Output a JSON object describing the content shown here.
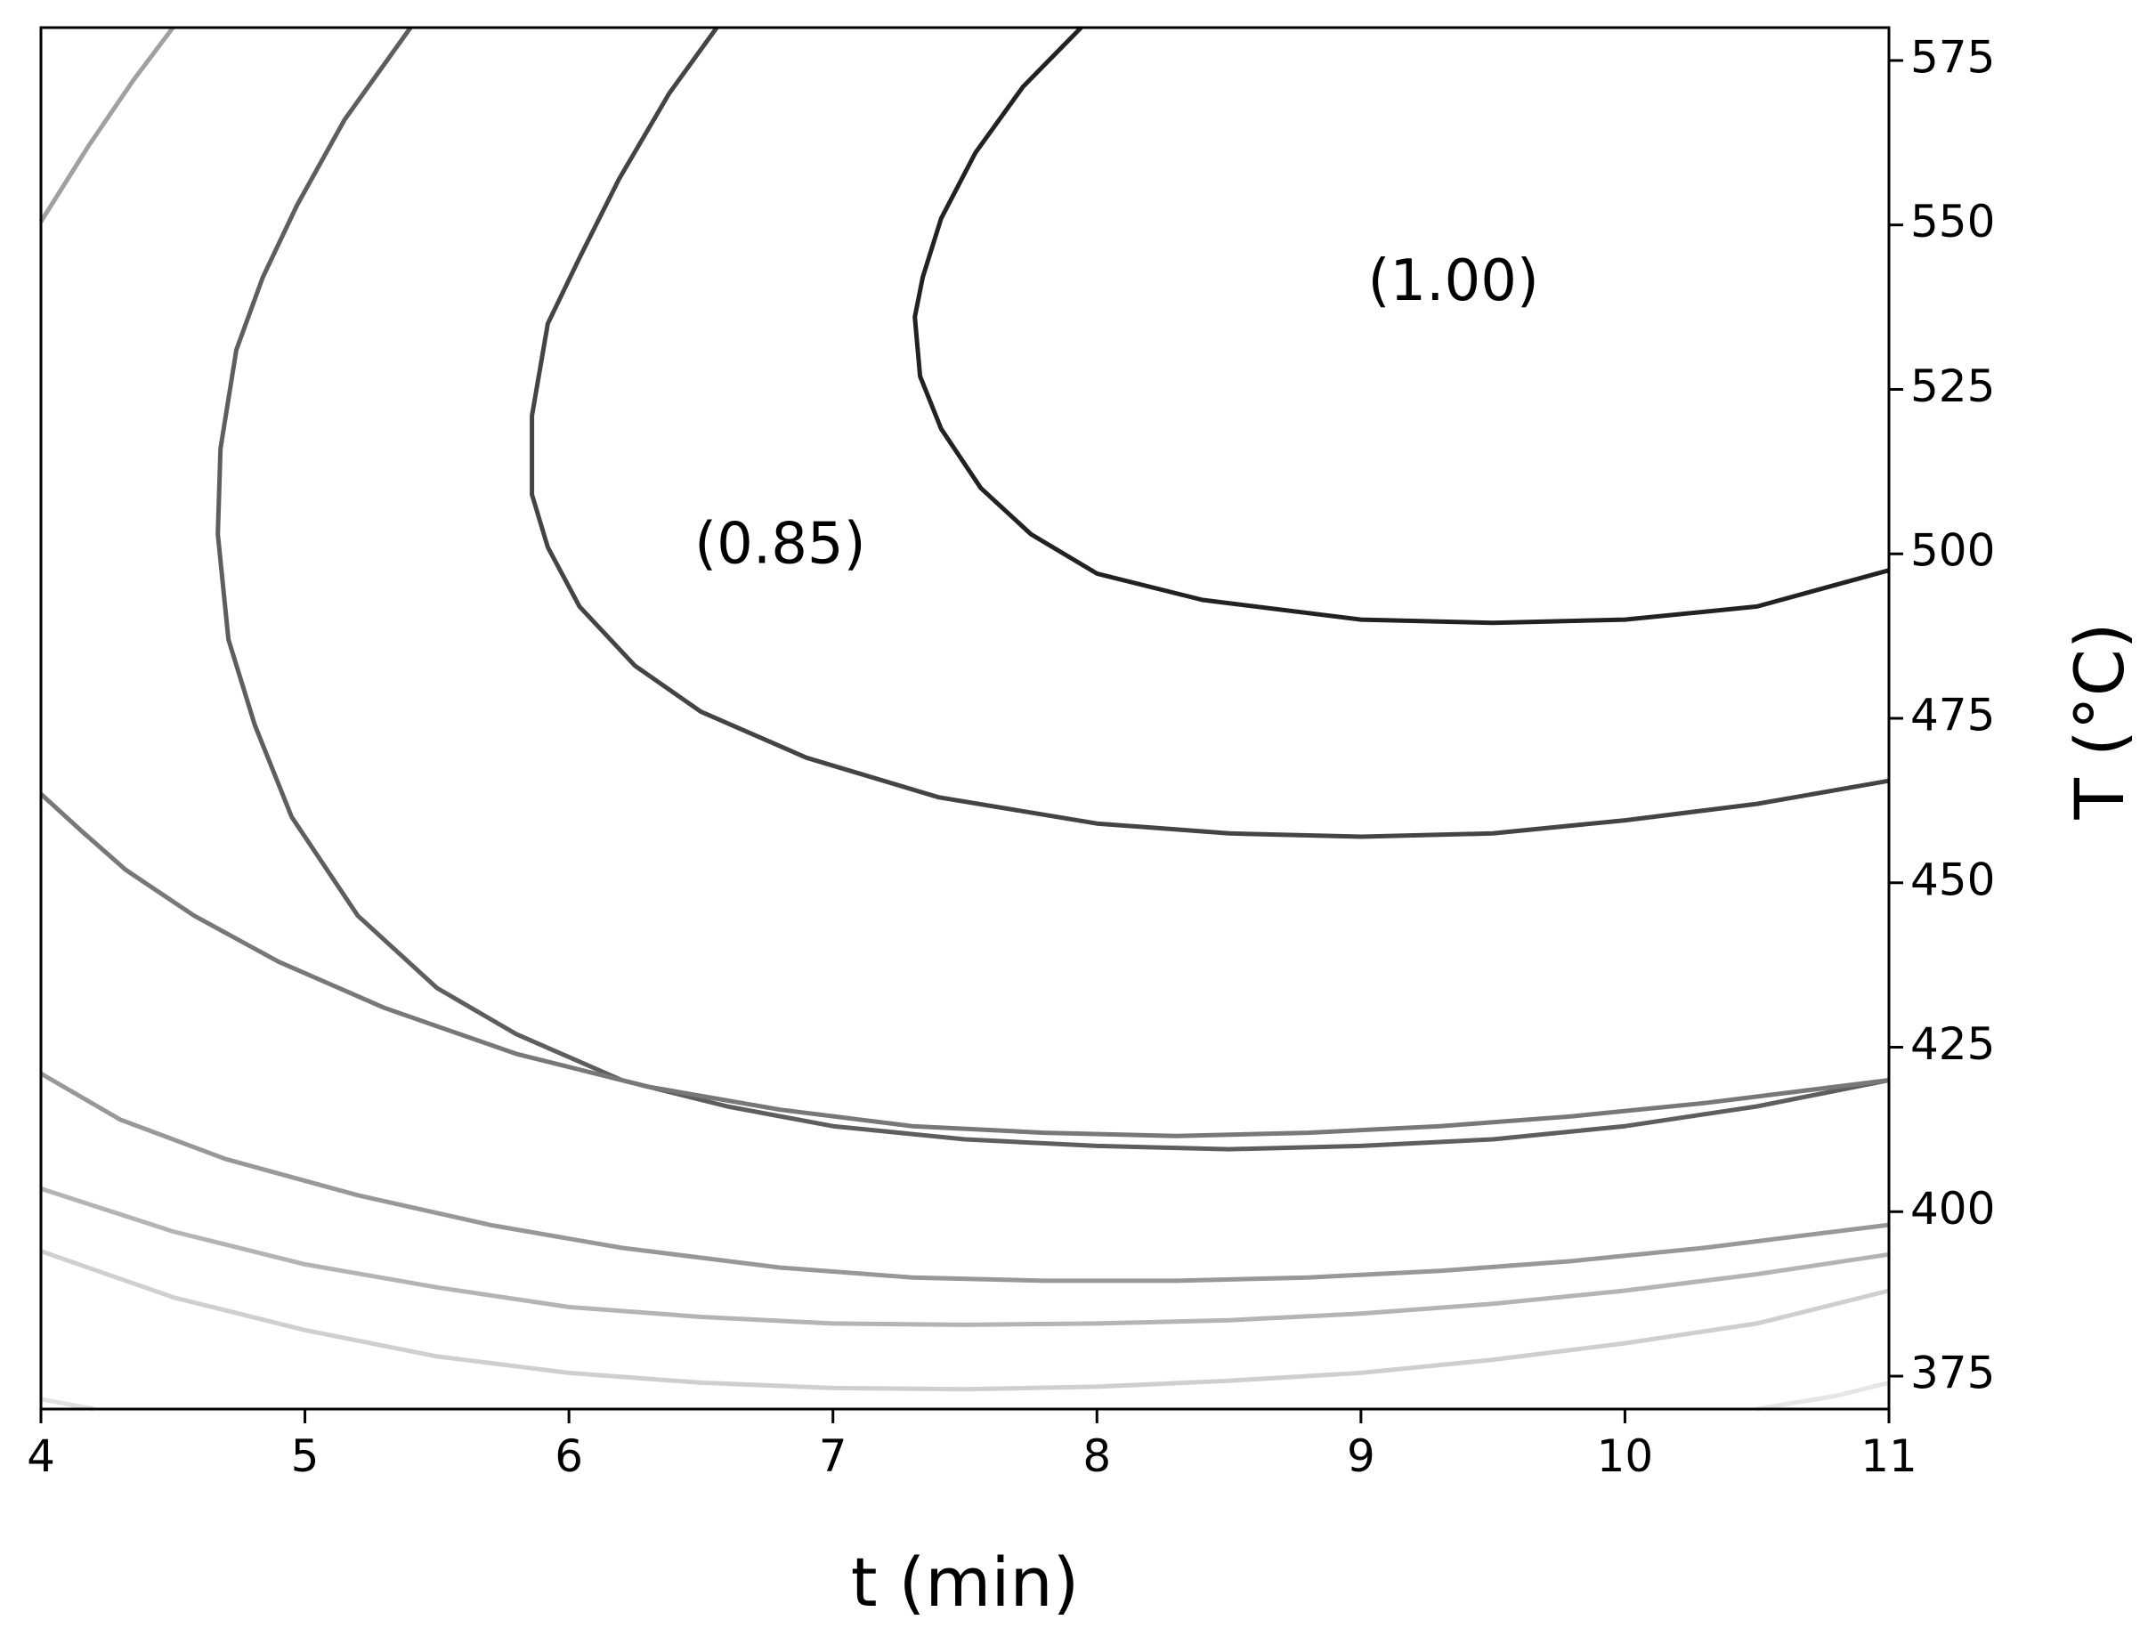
{
  "chart_data": {
    "type": "contour",
    "title": "",
    "xlabel": "t (min)",
    "ylabel": "T (°C)",
    "xlim": [
      4,
      11
    ],
    "ylim": [
      370,
      580
    ],
    "x_ticks": [
      4,
      5,
      6,
      7,
      8,
      9,
      10,
      11
    ],
    "y_ticks": [
      375,
      400,
      425,
      450,
      475,
      500,
      525,
      550,
      575
    ],
    "y_axis_side": "right",
    "grid": false,
    "annotations": [
      {
        "text": "(1.00)",
        "x": 9.35,
        "y": 541
      },
      {
        "text": "(0.85)",
        "x": 6.8,
        "y": 501
      }
    ],
    "contours": [
      {
        "color": "#222222",
        "points": [
          [
            7.94,
            580
          ],
          [
            7.72,
            571
          ],
          [
            7.54,
            561
          ],
          [
            7.41,
            551
          ],
          [
            7.34,
            542
          ],
          [
            7.31,
            536
          ],
          [
            7.33,
            527
          ],
          [
            7.41,
            519
          ],
          [
            7.56,
            510
          ],
          [
            7.75,
            503
          ],
          [
            8.0,
            497
          ],
          [
            8.4,
            493
          ],
          [
            9.0,
            490
          ],
          [
            9.5,
            489.5
          ],
          [
            10.0,
            490
          ],
          [
            10.5,
            492
          ],
          [
            11.0,
            497.5
          ]
        ]
      },
      {
        "color": "#444444",
        "points": [
          [
            6.56,
            580
          ],
          [
            6.38,
            570
          ],
          [
            6.19,
            557
          ],
          [
            6.04,
            545
          ],
          [
            5.92,
            535
          ],
          [
            5.86,
            521
          ],
          [
            5.86,
            509
          ],
          [
            5.92,
            501
          ],
          [
            6.04,
            492
          ],
          [
            6.25,
            483
          ],
          [
            6.5,
            476
          ],
          [
            6.9,
            469
          ],
          [
            7.4,
            463
          ],
          [
            8.0,
            459
          ],
          [
            8.5,
            457.5
          ],
          [
            9.0,
            457
          ],
          [
            9.5,
            457.5
          ],
          [
            10.0,
            459.5
          ],
          [
            10.5,
            462
          ],
          [
            11.0,
            465.5
          ]
        ]
      },
      {
        "color": "#5e5e5e",
        "points": [
          [
            5.4,
            580
          ],
          [
            5.15,
            566
          ],
          [
            4.97,
            553
          ],
          [
            4.84,
            542
          ],
          [
            4.74,
            531
          ],
          [
            4.68,
            516
          ],
          [
            4.67,
            503
          ],
          [
            4.71,
            487
          ],
          [
            4.81,
            474
          ],
          [
            4.95,
            460
          ],
          [
            5.2,
            445
          ],
          [
            5.5,
            434
          ],
          [
            5.8,
            427
          ],
          [
            6.2,
            420
          ],
          [
            6.6,
            416
          ],
          [
            7.0,
            413
          ],
          [
            7.5,
            411
          ],
          [
            8.0,
            410
          ],
          [
            8.5,
            409.5
          ],
          [
            9.0,
            410
          ],
          [
            9.5,
            411
          ],
          [
            10.0,
            413
          ],
          [
            10.5,
            416
          ],
          [
            11.0,
            420
          ]
        ]
      },
      {
        "color": "#787878",
        "points": [
          [
            4.0,
            463.5
          ],
          [
            4.15,
            458
          ],
          [
            4.32,
            452
          ],
          [
            4.58,
            445
          ],
          [
            4.9,
            438
          ],
          [
            5.3,
            431
          ],
          [
            5.8,
            424
          ],
          [
            6.3,
            419
          ],
          [
            6.8,
            415.5
          ],
          [
            7.3,
            413
          ],
          [
            7.8,
            412
          ],
          [
            8.3,
            411.5
          ],
          [
            8.8,
            412
          ],
          [
            9.3,
            413
          ],
          [
            9.8,
            414.5
          ],
          [
            10.3,
            416.5
          ],
          [
            11.0,
            420
          ]
        ]
      },
      {
        "color": "#989898",
        "points": [
          [
            4.0,
            421
          ],
          [
            4.3,
            414
          ],
          [
            4.7,
            408
          ],
          [
            5.2,
            402.5
          ],
          [
            5.7,
            398
          ],
          [
            6.2,
            394.5
          ],
          [
            6.8,
            391.5
          ],
          [
            7.3,
            390
          ],
          [
            7.8,
            389.5
          ],
          [
            8.3,
            389.5
          ],
          [
            8.8,
            390
          ],
          [
            9.3,
            391
          ],
          [
            9.8,
            392.5
          ],
          [
            10.3,
            394.5
          ],
          [
            11.0,
            398
          ]
        ]
      },
      {
        "color": "#b4b4b4",
        "points": [
          [
            4.0,
            403.5
          ],
          [
            4.5,
            397
          ],
          [
            5.0,
            392
          ],
          [
            5.5,
            388.5
          ],
          [
            6.0,
            385.5
          ],
          [
            6.5,
            384
          ],
          [
            7.0,
            383
          ],
          [
            7.5,
            382.8
          ],
          [
            8.0,
            383
          ],
          [
            8.5,
            383.5
          ],
          [
            9.0,
            384.5
          ],
          [
            9.5,
            386
          ],
          [
            10.0,
            388
          ],
          [
            10.5,
            390.5
          ],
          [
            11.0,
            393.5
          ]
        ]
      },
      {
        "color": "#cfcfcf",
        "points": [
          [
            4.0,
            394
          ],
          [
            4.5,
            387
          ],
          [
            5.0,
            382
          ],
          [
            5.5,
            378
          ],
          [
            6.0,
            375.5
          ],
          [
            6.5,
            374
          ],
          [
            7.0,
            373.2
          ],
          [
            7.5,
            373
          ],
          [
            8.0,
            373.4
          ],
          [
            8.5,
            374.3
          ],
          [
            9.0,
            375.5
          ],
          [
            9.5,
            377.5
          ],
          [
            10.0,
            380
          ],
          [
            10.5,
            383
          ],
          [
            11.0,
            388
          ]
        ]
      },
      {
        "color": "#e0e0e0",
        "points": [
          [
            4.0,
            371.5
          ],
          [
            4.2,
            370
          ]
        ]
      },
      {
        "color": "#e6e6e6",
        "points": [
          [
            10.5,
            370
          ],
          [
            10.8,
            372
          ],
          [
            11.0,
            374
          ]
        ]
      },
      {
        "color": "#a0a0a0",
        "points": [
          [
            4.0,
            550.5
          ],
          [
            4.18,
            562
          ],
          [
            4.35,
            572
          ],
          [
            4.5,
            580
          ]
        ]
      }
    ]
  }
}
